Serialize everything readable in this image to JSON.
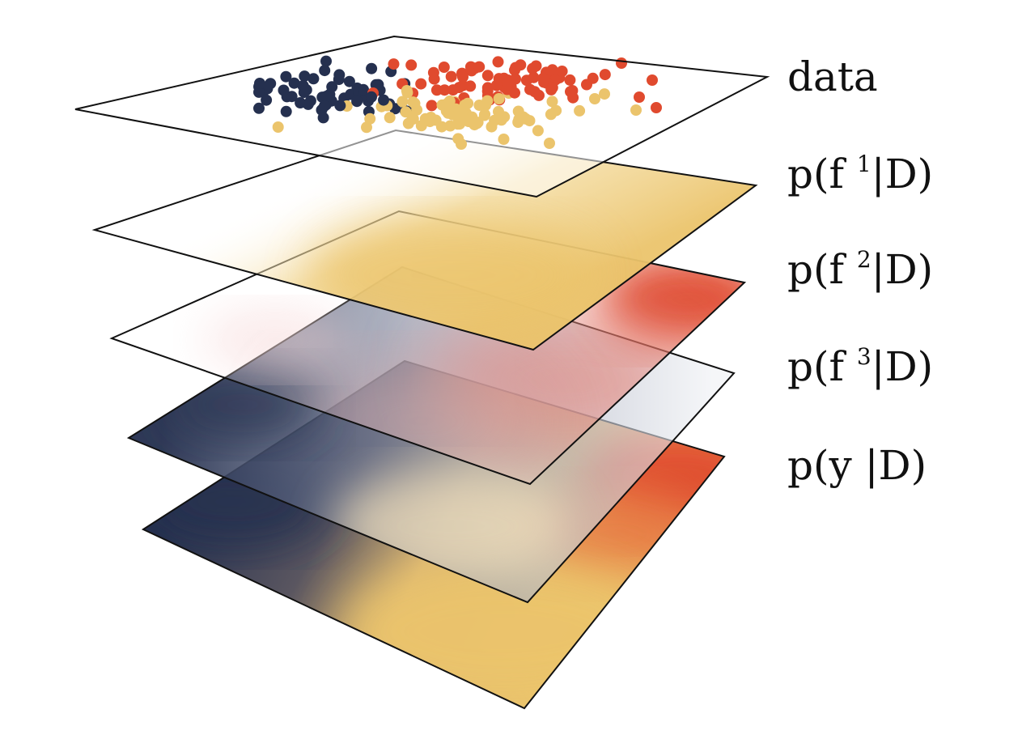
{
  "colors": {
    "navy": "#25304f",
    "red": "#e04a2e",
    "yellow": "#ebc46c",
    "white": "#ffffff",
    "outline": "#111111"
  },
  "layers": [
    {
      "id": "data",
      "parts": [
        {
          "text": "data"
        }
      ],
      "fill": "scatter"
    },
    {
      "id": "f1",
      "parts": [
        {
          "text": "p(f "
        },
        {
          "text": "1",
          "sup": true
        },
        {
          "text": "|D)"
        }
      ],
      "fill": "white-to-yellow"
    },
    {
      "id": "f2",
      "parts": [
        {
          "text": "p(f "
        },
        {
          "text": "2",
          "sup": true
        },
        {
          "text": "|D)"
        }
      ],
      "fill": "white-to-red"
    },
    {
      "id": "f3",
      "parts": [
        {
          "text": "p(f "
        },
        {
          "text": "3",
          "sup": true
        },
        {
          "text": "|D)"
        }
      ],
      "fill": "navy-to-white"
    },
    {
      "id": "y",
      "parts": [
        {
          "text": "p(y |D)"
        }
      ],
      "fill": "navy-red-yellow"
    }
  ],
  "scatter": {
    "classes": [
      {
        "name": "navy",
        "color": "#25304f",
        "count": 60
      },
      {
        "name": "red",
        "color": "#e04a2e",
        "count": 75
      },
      {
        "name": "yellow",
        "color": "#ebc46c",
        "count": 80
      }
    ]
  }
}
